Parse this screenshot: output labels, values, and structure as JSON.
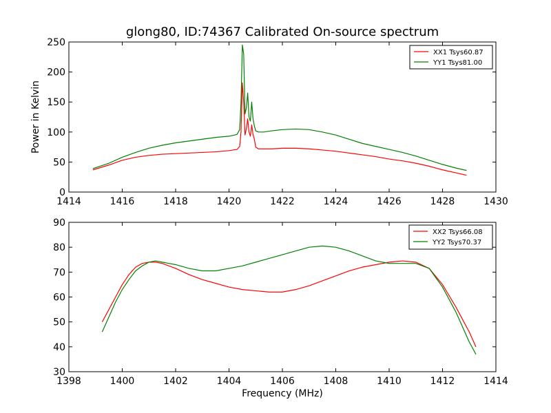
{
  "title": "glong80, ID:74367 Calibrated On-source spectrum",
  "chart_data": [
    {
      "type": "line",
      "ylabel": "Power in Kelvin",
      "xlabel": "",
      "xlim": [
        1414,
        1430
      ],
      "ylim": [
        0,
        250
      ],
      "xticks": [
        "1414",
        "1416",
        "1418",
        "1420",
        "1422",
        "1424",
        "1426",
        "1428",
        "1430"
      ],
      "yticks": [
        "0",
        "50",
        "100",
        "150",
        "200",
        "250"
      ],
      "legend_position": "top-right",
      "grid": false,
      "series": [
        {
          "name": "XX1 Tsys60.87",
          "color": "#ff0000",
          "x": [
            1414.9,
            1415.5,
            1416.0,
            1416.5,
            1417.0,
            1417.5,
            1418.0,
            1418.5,
            1419.0,
            1419.5,
            1420.0,
            1420.3,
            1420.4,
            1420.45,
            1420.5,
            1420.55,
            1420.6,
            1420.65,
            1420.7,
            1420.75,
            1420.8,
            1420.85,
            1420.9,
            1420.95,
            1421.0,
            1421.1,
            1421.3,
            1421.6,
            1422.0,
            1422.5,
            1423.0,
            1423.5,
            1424.0,
            1424.5,
            1425.0,
            1425.5,
            1426.0,
            1426.5,
            1427.0,
            1427.5,
            1428.0,
            1428.5,
            1428.9
          ],
          "y": [
            37,
            45,
            53,
            58,
            61,
            63,
            64,
            65,
            66,
            67,
            69,
            71,
            76,
            100,
            182,
            150,
            95,
            105,
            122,
            100,
            93,
            112,
            96,
            88,
            75,
            72,
            72,
            72,
            73,
            73,
            72,
            70,
            68,
            65,
            62,
            59,
            55,
            52,
            48,
            43,
            37,
            32,
            28
          ]
        },
        {
          "name": "YY1 Tsys81.00",
          "color": "#008000",
          "x": [
            1414.9,
            1415.5,
            1416.0,
            1416.5,
            1417.0,
            1417.5,
            1418.0,
            1418.5,
            1419.0,
            1419.5,
            1420.0,
            1420.3,
            1420.4,
            1420.45,
            1420.5,
            1420.55,
            1420.6,
            1420.65,
            1420.7,
            1420.75,
            1420.8,
            1420.85,
            1420.9,
            1420.95,
            1421.0,
            1421.1,
            1421.3,
            1421.6,
            1422.0,
            1422.5,
            1423.0,
            1423.5,
            1424.0,
            1424.5,
            1425.0,
            1425.5,
            1426.0,
            1426.5,
            1427.0,
            1427.5,
            1428.0,
            1428.5,
            1428.9
          ],
          "y": [
            39,
            48,
            58,
            66,
            73,
            78,
            82,
            85,
            88,
            91,
            93,
            96,
            104,
            150,
            245,
            230,
            130,
            140,
            165,
            125,
            118,
            150,
            122,
            110,
            102,
            100,
            100,
            102,
            104,
            105,
            104,
            100,
            95,
            88,
            81,
            76,
            71,
            66,
            60,
            53,
            46,
            40,
            36
          ]
        }
      ]
    },
    {
      "type": "line",
      "ylabel": "",
      "xlabel": "Frequency (MHz)",
      "xlim": [
        1398,
        1414
      ],
      "ylim": [
        30,
        90
      ],
      "xticks": [
        "1398",
        "1400",
        "1402",
        "1404",
        "1406",
        "1408",
        "1410",
        "1412",
        "1414"
      ],
      "yticks": [
        "30",
        "40",
        "50",
        "60",
        "70",
        "80",
        "90"
      ],
      "legend_position": "top-right",
      "grid": false,
      "series": [
        {
          "name": "XX2 Tsys66.08",
          "color": "#ff0000",
          "x": [
            1399.25,
            1399.5,
            1399.75,
            1400.0,
            1400.25,
            1400.5,
            1400.75,
            1401.0,
            1401.25,
            1401.5,
            1401.75,
            1402.0,
            1402.5,
            1403.0,
            1403.5,
            1404.0,
            1404.5,
            1405.0,
            1405.5,
            1406.0,
            1406.5,
            1407.0,
            1407.5,
            1408.0,
            1408.5,
            1409.0,
            1409.5,
            1410.0,
            1410.5,
            1411.0,
            1411.5,
            1412.0,
            1412.5,
            1412.75,
            1413.0,
            1413.25
          ],
          "y": [
            50,
            55,
            60,
            65,
            69,
            72,
            73.5,
            74,
            74,
            73.5,
            72.5,
            71.5,
            69,
            67,
            65.5,
            64,
            63,
            62.5,
            62,
            62,
            63,
            64.5,
            66.5,
            68.5,
            70.5,
            72,
            73,
            74,
            74.5,
            74,
            71.5,
            65,
            56,
            51,
            46,
            40
          ]
        },
        {
          "name": "YY2 Tsys70.37",
          "color": "#008000",
          "x": [
            1399.25,
            1399.5,
            1399.75,
            1400.0,
            1400.25,
            1400.5,
            1400.75,
            1401.0,
            1401.25,
            1401.5,
            1401.75,
            1402.0,
            1402.5,
            1403.0,
            1403.5,
            1404.0,
            1404.5,
            1405.0,
            1405.5,
            1406.0,
            1406.5,
            1407.0,
            1407.5,
            1408.0,
            1408.5,
            1409.0,
            1409.5,
            1410.0,
            1410.5,
            1411.0,
            1411.5,
            1412.0,
            1412.5,
            1412.75,
            1413.0,
            1413.25
          ],
          "y": [
            46,
            52,
            58,
            63,
            67,
            70.5,
            72.5,
            74,
            74.5,
            74,
            73.5,
            73,
            71.5,
            70.5,
            70.5,
            71.5,
            72.5,
            74,
            75.5,
            77,
            78.5,
            80,
            80.5,
            80,
            78.5,
            76.5,
            74.5,
            73.5,
            73.5,
            73.5,
            71.5,
            64,
            54,
            48,
            42,
            37
          ]
        }
      ]
    }
  ]
}
